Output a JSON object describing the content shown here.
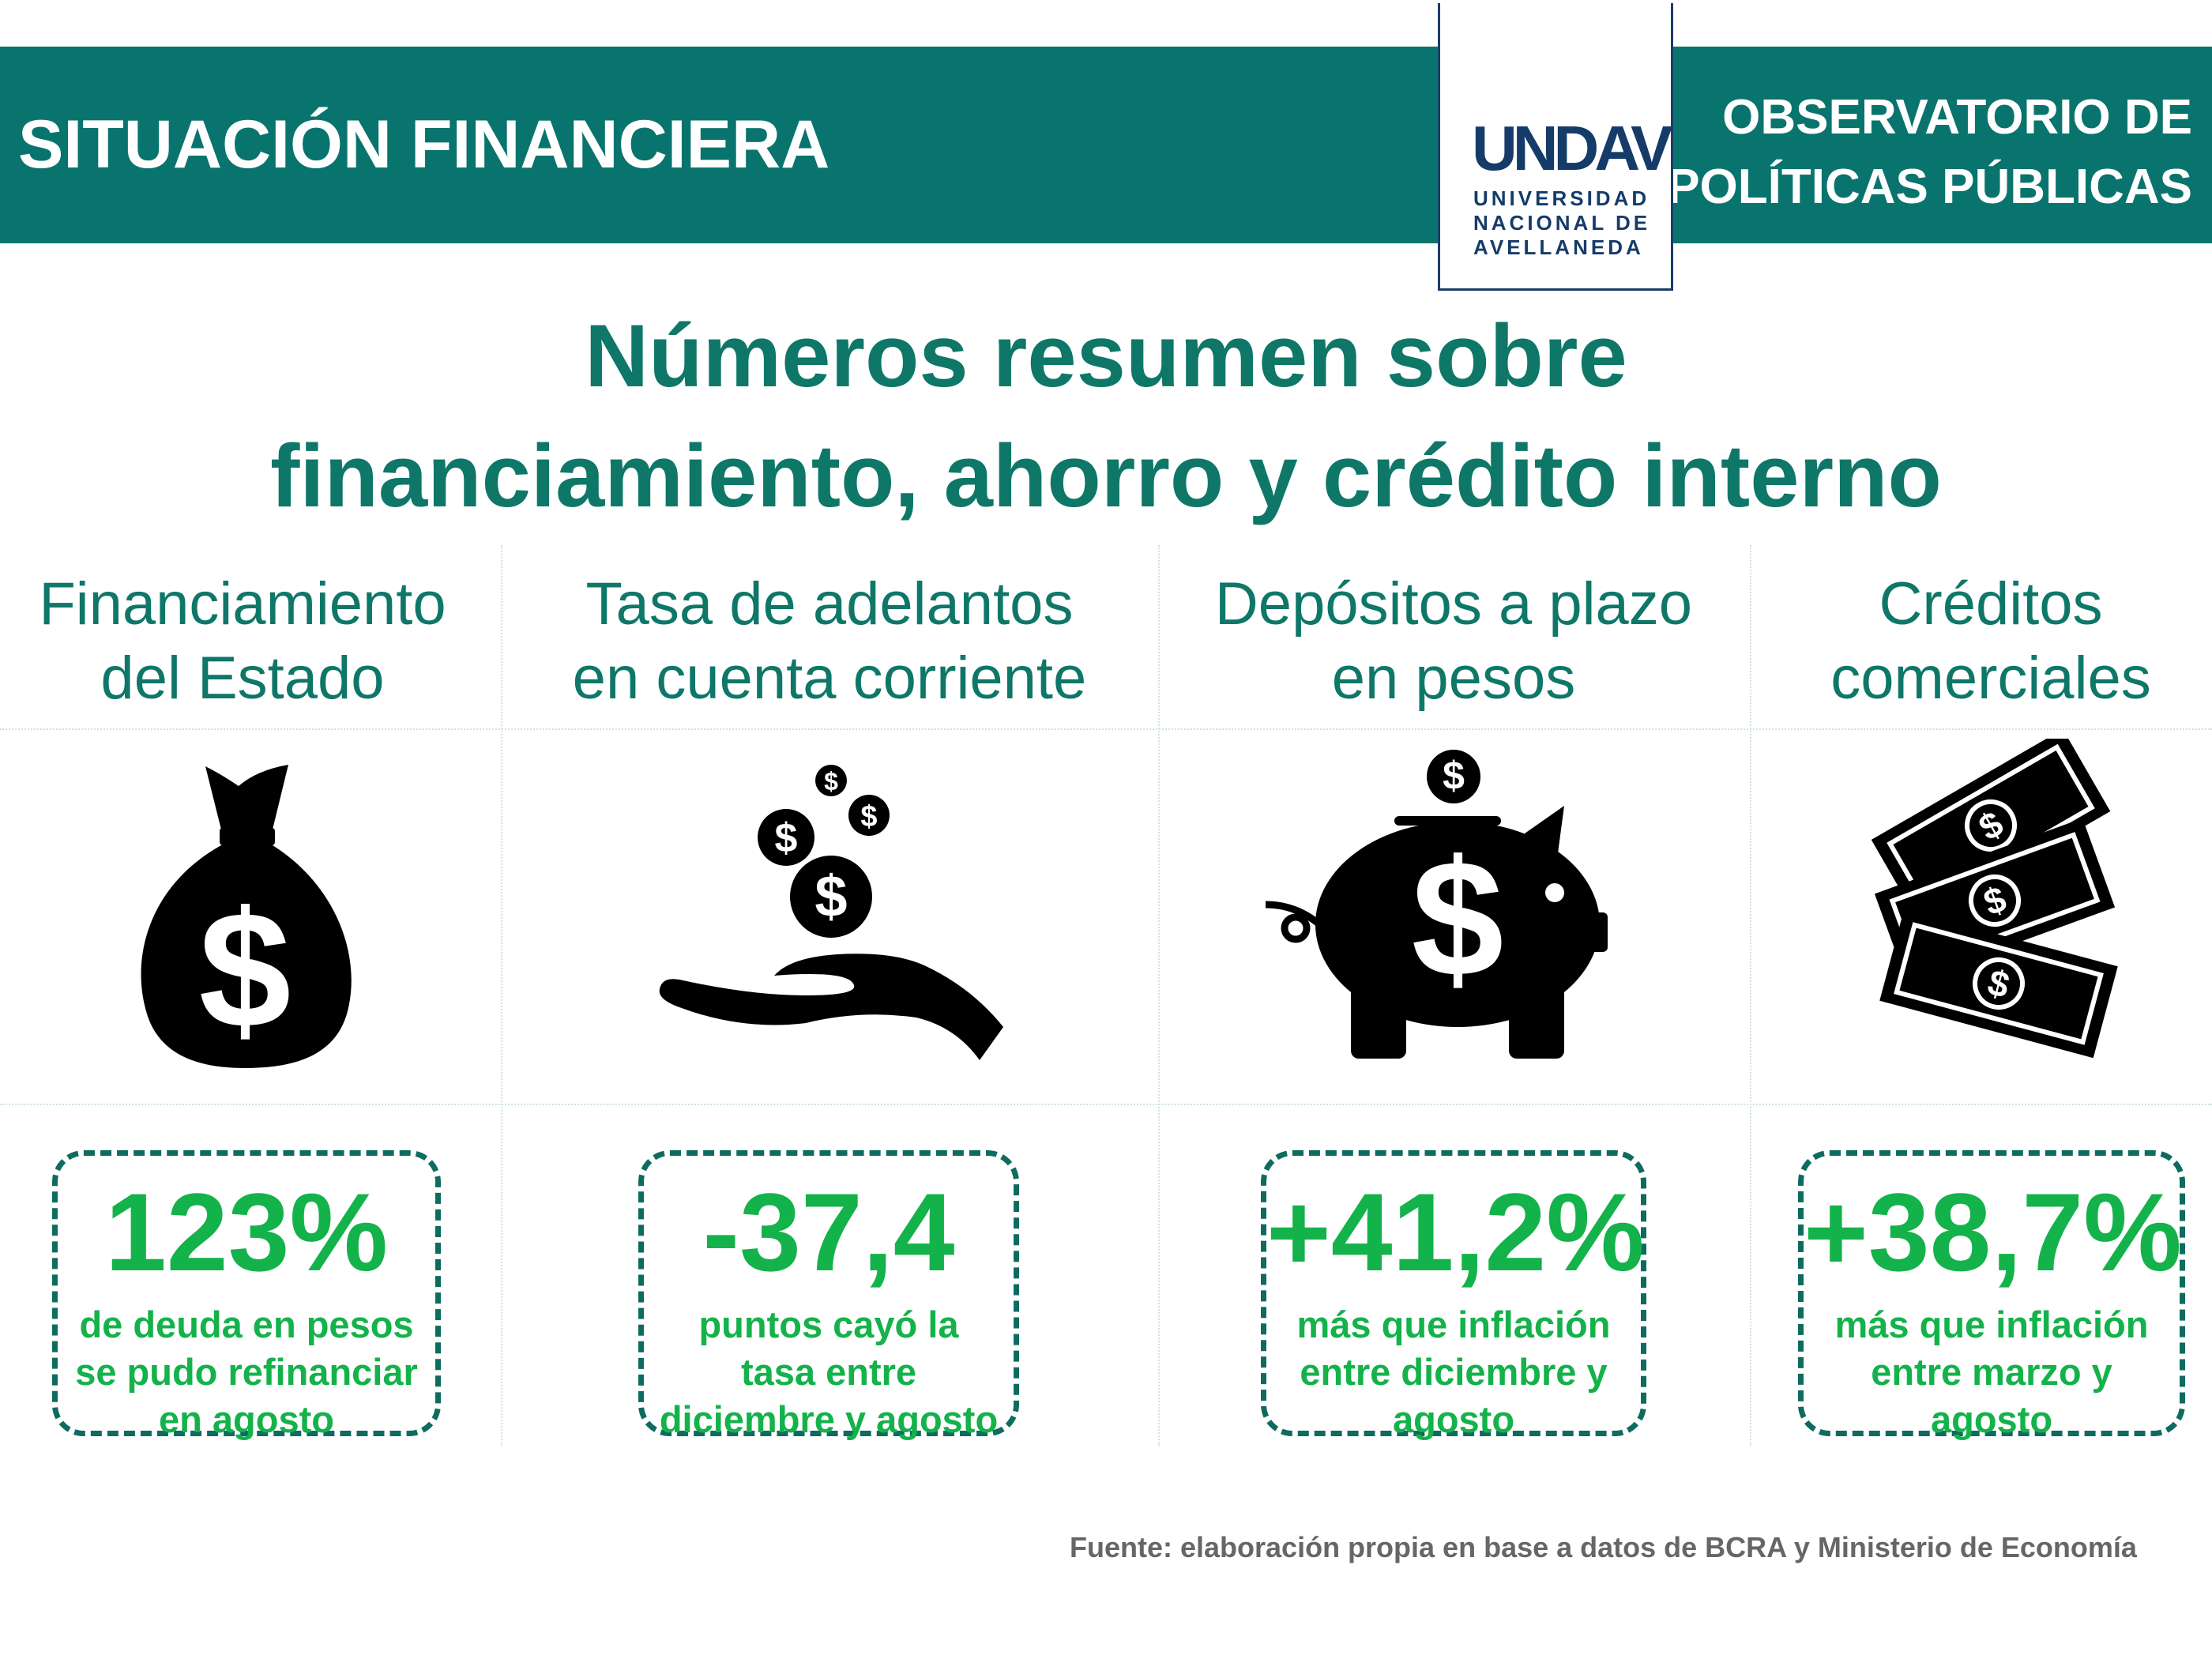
{
  "header": {
    "left_title": "SITUACIÓN FINANCIERA",
    "right_title_line1": "OBSERVATORIO DE",
    "right_title_line2": "POLÍTICAS PÚBLICAS",
    "logo_word": "UNDAV",
    "logo_sub_line1": "UNIVERSIDAD",
    "logo_sub_line2": "NACIONAL DE",
    "logo_sub_line3": "AVELLANEDA"
  },
  "title": {
    "line1": "Números resumen sobre",
    "line2": "financiamiento, ahorro y crédito interno"
  },
  "columns": [
    {
      "head_line1": "Financiamiento",
      "head_line2": "del Estado",
      "icon": "money-bag-icon",
      "value": "123%",
      "desc_line1": "de deuda en pesos",
      "desc_line2": "se pudo refinanciar",
      "desc_line3": "en agosto"
    },
    {
      "head_line1": "Tasa de adelantos",
      "head_line2": "en cuenta corriente",
      "icon": "hand-coins-icon",
      "value": "-37,4",
      "desc_line1": "puntos cayó la",
      "desc_line2": "tasa entre",
      "desc_line3": "diciembre y agosto"
    },
    {
      "head_line1": "Depósitos a plazo",
      "head_line2": "en pesos",
      "icon": "piggy-bank-icon",
      "value": "+41,2%",
      "desc_line1": "más que inflación",
      "desc_line2": "entre diciembre y",
      "desc_line3": "agosto"
    },
    {
      "head_line1": "Créditos",
      "head_line2": "comerciales",
      "icon": "banknotes-icon",
      "value": "+38,7%",
      "desc_line1": "más que inflación",
      "desc_line2": "entre marzo y",
      "desc_line3": "agosto"
    }
  ],
  "source": "Fuente: elaboración propia en base a datos de BCRA y Ministerio de Economía",
  "colors": {
    "header_teal": "#09746d",
    "title_teal": "#0e7768",
    "value_green": "#14b24a",
    "logo_navy": "#153b69"
  }
}
